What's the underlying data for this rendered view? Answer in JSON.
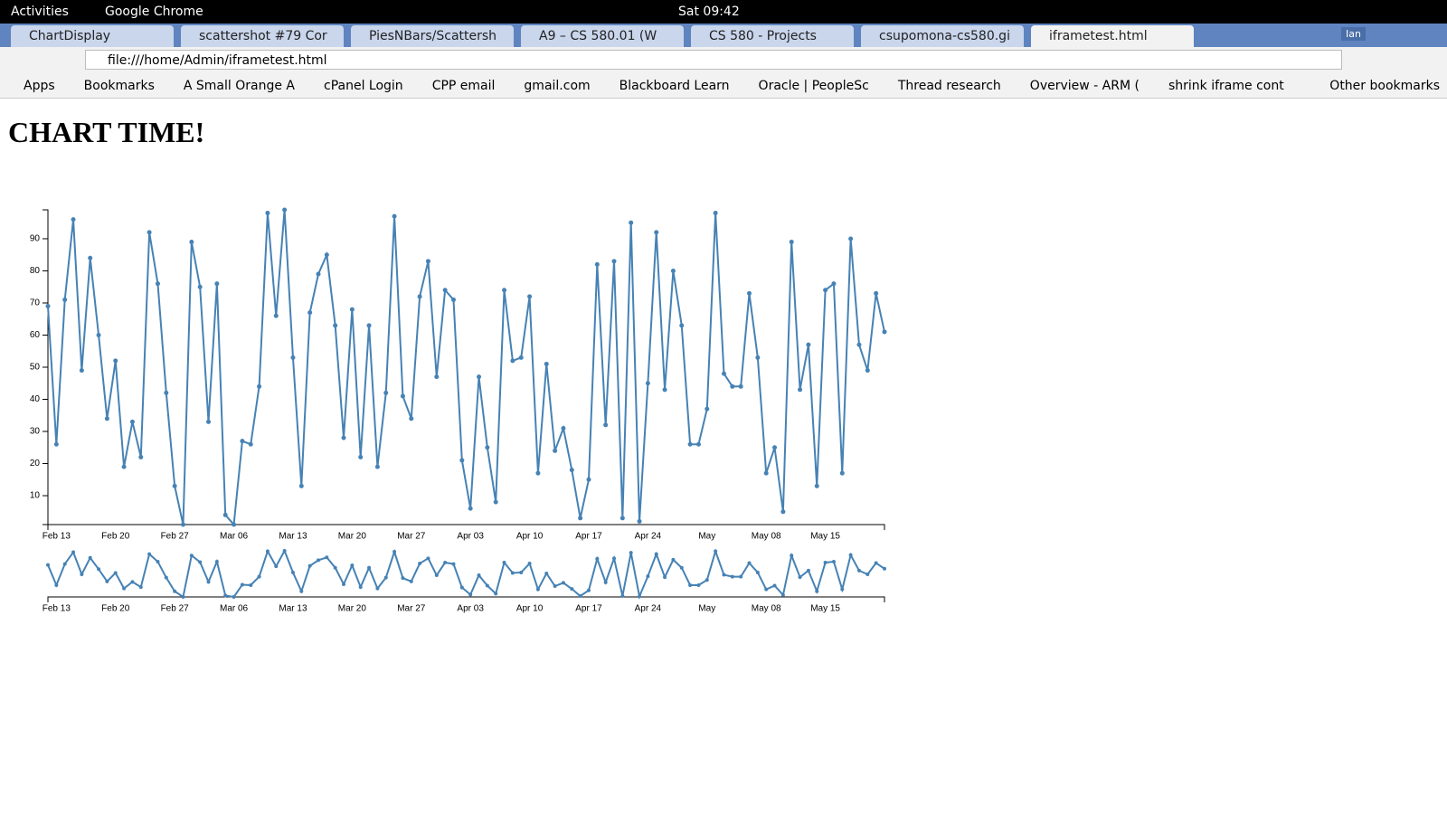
{
  "system_bar": {
    "activities": "Activities",
    "app": "Google Chrome",
    "clock": "Sat 09:42"
  },
  "tabs": [
    "ChartDisplay",
    "scattershot #79 Cor",
    "PiesNBars/Scattersh",
    "A9 – CS 580.01 (W",
    "CS 580 - Projects",
    "csupomona-cs580.gi",
    "iframetest.html"
  ],
  "window_user": "Ian",
  "address": "file:///home/Admin/iframetest.html",
  "bookmarks": [
    "Apps",
    "Bookmarks",
    "A Small Orange A",
    "cPanel Login",
    "CPP email",
    "gmail.com",
    "Blackboard Learn",
    "Oracle | PeopleSc",
    "Thread research",
    "Overview - ARM (",
    "shrink iframe cont"
  ],
  "other_bookmarks": "Other bookmarks",
  "page": {
    "heading": "CHART TIME!"
  },
  "chart_data": {
    "type": "line",
    "color": "#4682b4",
    "markers": true,
    "categories": [
      null,
      "Feb 13",
      null,
      null,
      null,
      null,
      null,
      null,
      "Feb 20",
      null,
      null,
      null,
      null,
      null,
      null,
      "Feb 27",
      null,
      null,
      null,
      null,
      null,
      null,
      "Mar 06",
      null,
      null,
      null,
      null,
      null,
      null,
      "Mar 13",
      null,
      null,
      null,
      null,
      null,
      null,
      "Mar 20",
      null,
      null,
      null,
      null,
      null,
      null,
      "Mar 27",
      null,
      null,
      null,
      null,
      null,
      null,
      "Apr 03",
      null,
      null,
      null,
      null,
      null,
      null,
      "Apr 10",
      null,
      null,
      null,
      null,
      null,
      null,
      "Apr 17",
      null,
      null,
      null,
      null,
      null,
      null,
      "Apr 24",
      null,
      null,
      null,
      null,
      null,
      null,
      "May",
      null,
      null,
      null,
      null,
      null,
      null,
      "May 08",
      null,
      null,
      null,
      null,
      null,
      null,
      "May 15",
      null,
      null,
      null,
      null,
      null,
      null,
      null
    ],
    "values": [
      69,
      26,
      71,
      96,
      49,
      84,
      60,
      34,
      52,
      19,
      33,
      22,
      92,
      76,
      42,
      13,
      1,
      89,
      75,
      33,
      76,
      4,
      1,
      27,
      26,
      44,
      98,
      66,
      99,
      53,
      13,
      67,
      79,
      85,
      63,
      28,
      68,
      22,
      63,
      19,
      42,
      97,
      41,
      34,
      72,
      83,
      47,
      74,
      71,
      21,
      6,
      47,
      25,
      8,
      74,
      52,
      53,
      72,
      17,
      51,
      24,
      31,
      18,
      3,
      15,
      82,
      32,
      83,
      3,
      95,
      2,
      45,
      92,
      43,
      80,
      63,
      26,
      26,
      37,
      98,
      48,
      44,
      44,
      73,
      53,
      17,
      25,
      5,
      89,
      43,
      57,
      13,
      74,
      76,
      17,
      90,
      57,
      49,
      73,
      61
    ],
    "ylim": [
      1,
      99
    ],
    "yticks": [
      10,
      20,
      30,
      40,
      50,
      60,
      70,
      80,
      90
    ]
  }
}
